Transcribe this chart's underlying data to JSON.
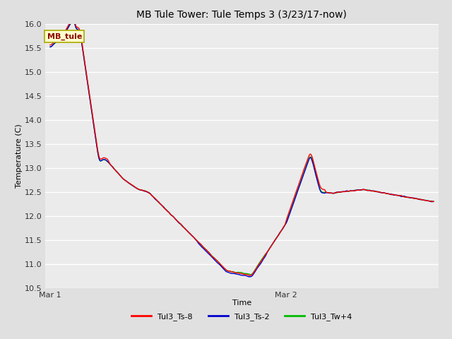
{
  "title": "MB Tule Tower: Tule Temps 3 (3/23/17-now)",
  "xlabel": "Time",
  "ylabel": "Temperature (C)",
  "ylim": [
    10.5,
    16.0
  ],
  "yticks": [
    10.5,
    11.0,
    11.5,
    12.0,
    12.5,
    13.0,
    13.5,
    14.0,
    14.5,
    15.0,
    15.5,
    16.0
  ],
  "x_tick_labels": [
    "Mar 1",
    "Mar 2"
  ],
  "background_color": "#e0e0e0",
  "plot_bg_color": "#ebebeb",
  "grid_color": "#ffffff",
  "legend_label": "MB_tule",
  "legend_text_color": "#8b0000",
  "series": {
    "Tul3_Ts8": {
      "color": "#ff0000",
      "label": "Tul3_Ts-8"
    },
    "Tul3_Ts2": {
      "color": "#0000cd",
      "label": "Tul3_Ts-2"
    },
    "Tul3_Tw4": {
      "color": "#00bb00",
      "label": "Tul3_Tw+4"
    }
  }
}
